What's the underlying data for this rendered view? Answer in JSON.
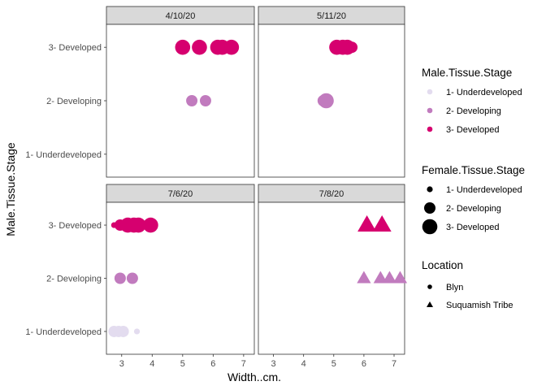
{
  "chart_data": {
    "type": "scatter",
    "xlabel": "Width..cm.",
    "ylabel": "Male.Tissue.Stage",
    "xlim": [
      2.5,
      7.35
    ],
    "x_ticks": [
      3,
      4,
      5,
      6,
      7
    ],
    "y_categories": [
      "1- Underdeveloped",
      "2- Developing",
      "3- Developed"
    ],
    "grid": false,
    "colors": {
      "1- Underdeveloped": "#e3dcef",
      "2- Developing": "#c17bbe",
      "3- Developed": "#d6006f"
    },
    "panels": [
      {
        "title": "4/10/20",
        "points": [
          {
            "x": 5.0,
            "y": "3- Developed",
            "female": "3- Developed",
            "location": "Blyn"
          },
          {
            "x": 5.55,
            "y": "3- Developed",
            "female": "3- Developed",
            "location": "Blyn"
          },
          {
            "x": 6.15,
            "y": "3- Developed",
            "female": "3- Developed",
            "location": "Blyn"
          },
          {
            "x": 6.3,
            "y": "3- Developed",
            "female": "3- Developed",
            "location": "Blyn"
          },
          {
            "x": 6.6,
            "y": "3- Developed",
            "female": "3- Developed",
            "location": "Blyn"
          },
          {
            "x": 5.3,
            "y": "2- Developing",
            "female": "2- Developing",
            "location": "Blyn"
          },
          {
            "x": 5.75,
            "y": "2- Developing",
            "female": "2- Developing",
            "location": "Blyn"
          }
        ]
      },
      {
        "title": "5/11/20",
        "points": [
          {
            "x": 5.1,
            "y": "3- Developed",
            "female": "3- Developed",
            "location": "Blyn"
          },
          {
            "x": 5.3,
            "y": "3- Developed",
            "female": "3- Developed",
            "location": "Blyn"
          },
          {
            "x": 5.45,
            "y": "3- Developed",
            "female": "3- Developed",
            "location": "Blyn"
          },
          {
            "x": 5.6,
            "y": "3- Developed",
            "female": "2- Developing",
            "location": "Blyn"
          },
          {
            "x": 4.65,
            "y": "2- Developing",
            "female": "2- Developing",
            "location": "Blyn"
          },
          {
            "x": 4.75,
            "y": "2- Developing",
            "female": "3- Developed",
            "location": "Blyn"
          }
        ]
      },
      {
        "title": "7/6/20",
        "points": [
          {
            "x": 2.75,
            "y": "3- Developed",
            "female": "1- Underdeveloped",
            "location": "Blyn"
          },
          {
            "x": 2.95,
            "y": "3- Developed",
            "female": "2- Developing",
            "location": "Blyn"
          },
          {
            "x": 3.2,
            "y": "3- Developed",
            "female": "3- Developed",
            "location": "Blyn"
          },
          {
            "x": 3.4,
            "y": "3- Developed",
            "female": "3- Developed",
            "location": "Blyn"
          },
          {
            "x": 3.55,
            "y": "3- Developed",
            "female": "3- Developed",
            "location": "Blyn"
          },
          {
            "x": 3.95,
            "y": "3- Developed",
            "female": "3- Developed",
            "location": "Blyn"
          },
          {
            "x": 2.95,
            "y": "2- Developing",
            "female": "2- Developing",
            "location": "Blyn"
          },
          {
            "x": 3.35,
            "y": "2- Developing",
            "female": "2- Developing",
            "location": "Blyn"
          },
          {
            "x": 2.75,
            "y": "1- Underdeveloped",
            "female": "2- Developing",
            "location": "Blyn"
          },
          {
            "x": 2.9,
            "y": "1- Underdeveloped",
            "female": "2- Developing",
            "location": "Blyn"
          },
          {
            "x": 3.05,
            "y": "1- Underdeveloped",
            "female": "2- Developing",
            "location": "Blyn"
          },
          {
            "x": 3.5,
            "y": "1- Underdeveloped",
            "female": "1- Underdeveloped",
            "location": "Blyn"
          }
        ]
      },
      {
        "title": "7/8/20",
        "points": [
          {
            "x": 6.1,
            "y": "3- Developed",
            "female": "3- Developed",
            "location": "Suquamish Tribe"
          },
          {
            "x": 6.6,
            "y": "3- Developed",
            "female": "3- Developed",
            "location": "Suquamish Tribe"
          },
          {
            "x": 6.0,
            "y": "2- Developing",
            "female": "2- Developing",
            "location": "Suquamish Tribe"
          },
          {
            "x": 6.55,
            "y": "2- Developing",
            "female": "2- Developing",
            "location": "Suquamish Tribe"
          },
          {
            "x": 6.85,
            "y": "2- Developing",
            "female": "2- Developing",
            "location": "Suquamish Tribe"
          },
          {
            "x": 7.2,
            "y": "2- Developing",
            "female": "2- Developing",
            "location": "Suquamish Tribe"
          }
        ]
      }
    ],
    "legends": [
      {
        "title": "Male.Tissue.Stage",
        "items": [
          {
            "label": "1- Underdeveloped",
            "color": "#e3dcef"
          },
          {
            "label": "2- Developing",
            "color": "#c17bbe"
          },
          {
            "label": "3- Developed",
            "color": "#d6006f"
          }
        ]
      },
      {
        "title": "Female.Tissue.Stage",
        "items": [
          {
            "label": "1- Underdeveloped",
            "size_level": 1
          },
          {
            "label": "2- Developing",
            "size_level": 2
          },
          {
            "label": "3- Developed",
            "size_level": 3
          }
        ]
      },
      {
        "title": "Location",
        "items": [
          {
            "label": "Blyn",
            "shape": "circle"
          },
          {
            "label": "Suquamish Tribe",
            "shape": "triangle"
          }
        ]
      }
    ]
  }
}
